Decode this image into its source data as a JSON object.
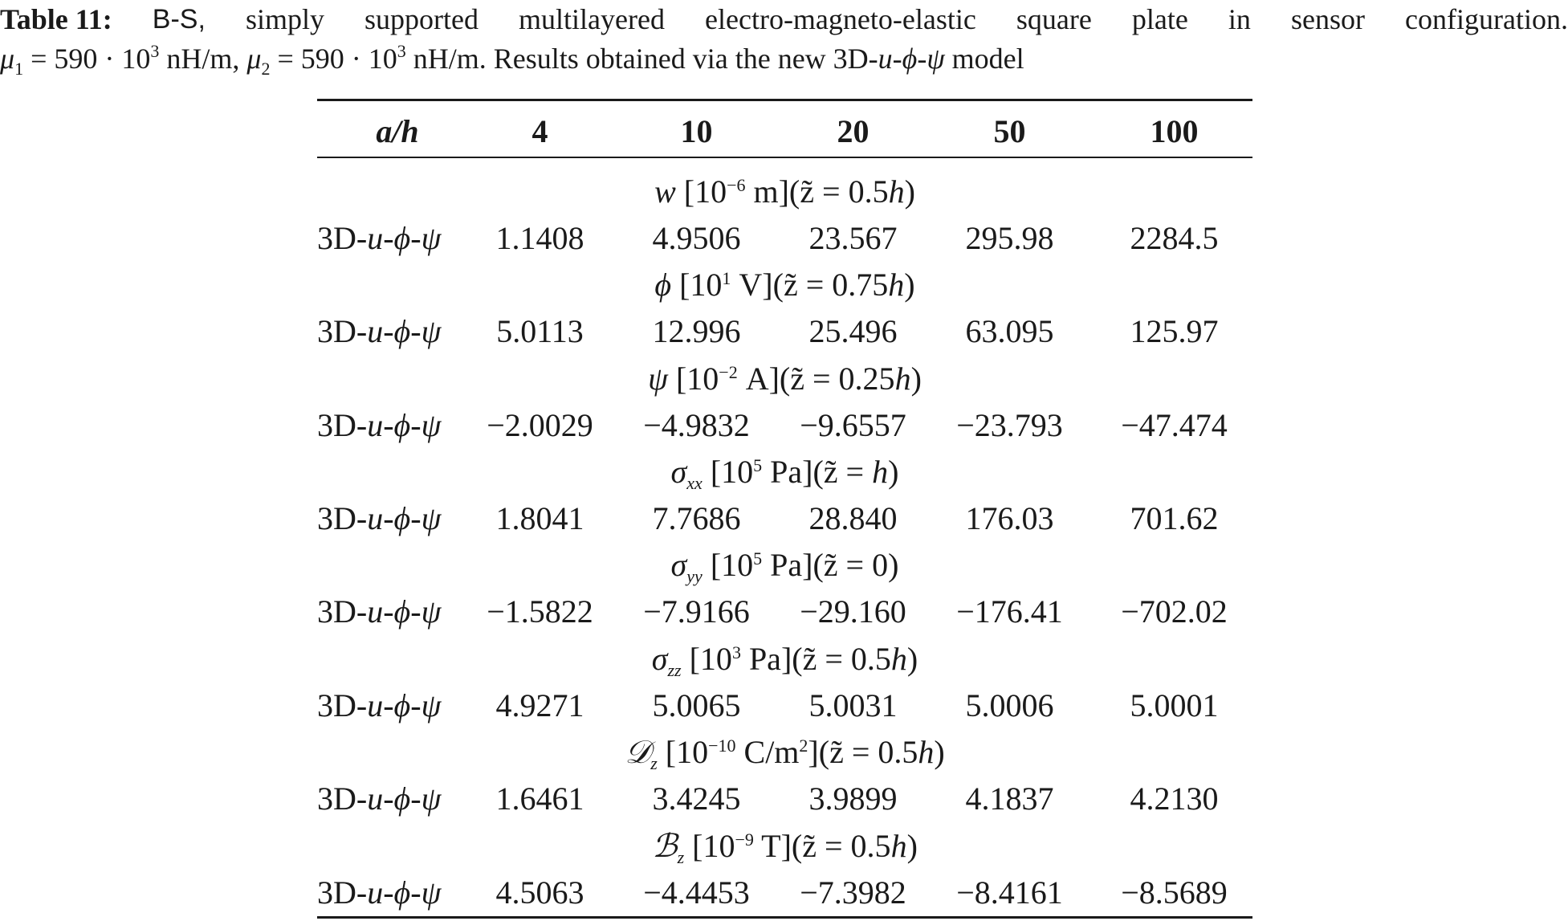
{
  "caption": {
    "label": "Table 11:",
    "line1_words": [
      "B-S,",
      "simply",
      "supported",
      "multilayered",
      "electro-magneto-elastic",
      "square",
      "plate",
      "in",
      "sensor",
      "configuration."
    ],
    "mu1_symbol": "μ",
    "mu1_sub": "1",
    "mu1_value": " = 590 · 10",
    "mu1_exp": "3",
    "mu1_unit": " nH/m, ",
    "mu2_symbol": "μ",
    "mu2_sub": "2",
    "mu2_value": " = 590 · 10",
    "mu2_exp": "3",
    "mu2_unit": " nH/m. Results obtained via the new 3D-",
    "model_u": "u",
    "model_dash1": "-",
    "model_phi": "ϕ",
    "model_dash2": "-",
    "model_psi": "ψ",
    "model_tail": " model"
  },
  "table": {
    "header": {
      "first": "a/h",
      "cols": [
        "4",
        "10",
        "20",
        "50",
        "100"
      ]
    },
    "sections": [
      {
        "quantity": "w",
        "quantity_sub": "",
        "bracket_open": " [10",
        "exp": "−6",
        "unit": " m](",
        "z": "z̃",
        "where": " = 0.5",
        "h": "h",
        "close": ")",
        "method": "3D-u-ϕ-ψ",
        "values": [
          "1.1408",
          "4.9506",
          "23.567",
          "295.98",
          "2284.5"
        ]
      },
      {
        "quantity": "ϕ",
        "quantity_sub": "",
        "bracket_open": " [10",
        "exp": "1",
        "unit": " V](",
        "z": "z̃",
        "where": " = 0.75",
        "h": "h",
        "close": ")",
        "method": "3D-u-ϕ-ψ",
        "values": [
          "5.0113",
          "12.996",
          "25.496",
          "63.095",
          "125.97"
        ]
      },
      {
        "quantity": "ψ",
        "quantity_sub": "",
        "bracket_open": " [10",
        "exp": "−2",
        "unit": " A](",
        "z": "z̃",
        "where": " = 0.25",
        "h": "h",
        "close": ")",
        "method": "3D-u-ϕ-ψ",
        "values": [
          "−2.0029",
          "−4.9832",
          "−9.6557",
          "−23.793",
          "−47.474"
        ]
      },
      {
        "quantity": "σ",
        "quantity_sub": "xx",
        "bracket_open": " [10",
        "exp": "5",
        "unit": " Pa](",
        "z": "z̃",
        "where": " = ",
        "h": "h",
        "close": ")",
        "method": "3D-u-ϕ-ψ",
        "values": [
          "1.8041",
          "7.7686",
          "28.840",
          "176.03",
          "701.62"
        ]
      },
      {
        "quantity": "σ",
        "quantity_sub": "yy",
        "bracket_open": " [10",
        "exp": "5",
        "unit": " Pa](",
        "z": "z̃",
        "where": " = 0",
        "h": "",
        "close": ")",
        "method": "3D-u-ϕ-ψ",
        "values": [
          "−1.5822",
          "−7.9166",
          "−29.160",
          "−176.41",
          "−702.02"
        ]
      },
      {
        "quantity": "σ",
        "quantity_sub": "zz",
        "bracket_open": " [10",
        "exp": "3",
        "unit": " Pa](",
        "z": "z̃",
        "where": " = 0.5",
        "h": "h",
        "close": ")",
        "method": "3D-u-ϕ-ψ",
        "values": [
          "4.9271",
          "5.0065",
          "5.0031",
          "5.0006",
          "5.0001"
        ]
      },
      {
        "quantity": "𝒟",
        "quantity_sub": "z",
        "bracket_open": " [10",
        "exp": "−10",
        "unit": " C/m",
        "unit_exp": "2",
        "unit_close": "](",
        "z": "z̃",
        "where": " = 0.5",
        "h": "h",
        "close": ")",
        "method": "3D-u-ϕ-ψ",
        "values": [
          "1.6461",
          "3.4245",
          "3.9899",
          "4.1837",
          "4.2130"
        ]
      },
      {
        "quantity": "ℬ",
        "quantity_sub": "z",
        "bracket_open": " [10",
        "exp": "−9",
        "unit": " T](",
        "z": "z̃",
        "where": " = 0.5",
        "h": "h",
        "close": ")",
        "method": "3D-u-ϕ-ψ",
        "values": [
          "4.5063",
          "−4.4453",
          "−7.3982",
          "−8.4161",
          "−8.5689"
        ]
      }
    ]
  }
}
